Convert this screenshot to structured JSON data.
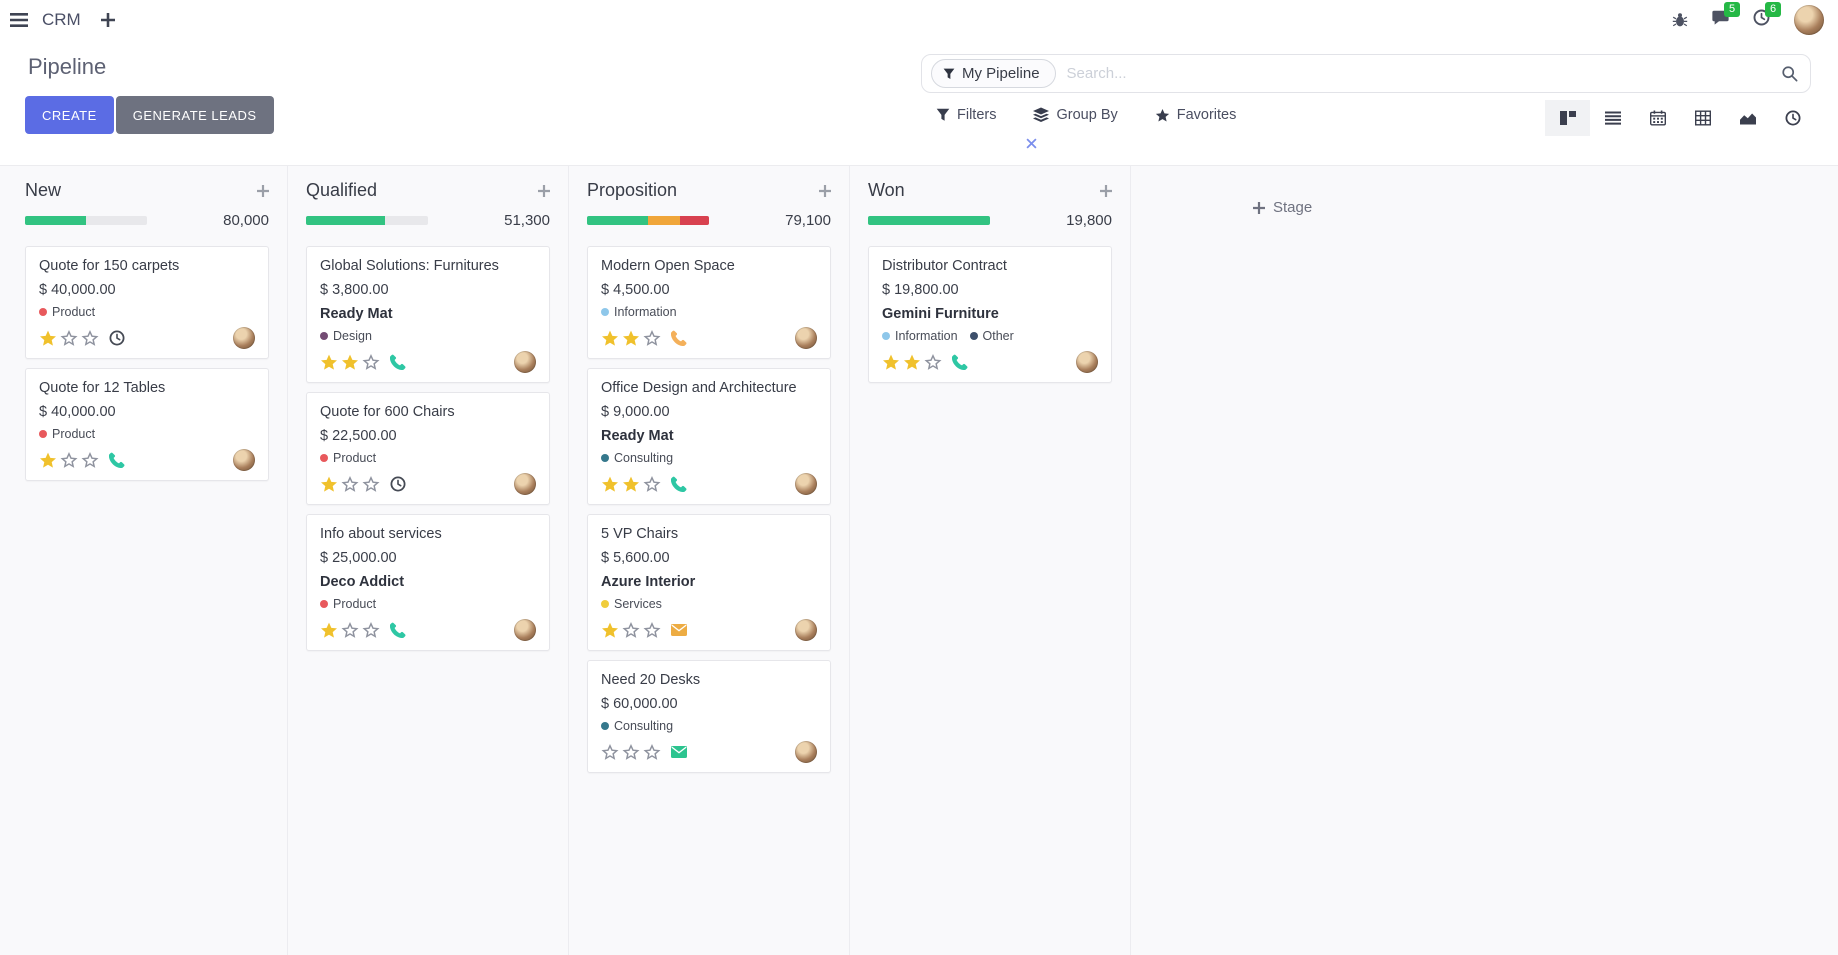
{
  "navbar": {
    "app": "CRM",
    "message_count": "5",
    "activity_count": "6"
  },
  "panel": {
    "title": "Pipeline",
    "create": "CREATE",
    "generate": "GENERATE LEADS",
    "facet": "My Pipeline",
    "search_placeholder": "Search...",
    "filters": "Filters",
    "group_by": "Group By",
    "favorites": "Favorites",
    "stage_add": "Stage"
  },
  "colors": {
    "accent": "#5b6ce4",
    "button_secondary": "#6e7280",
    "badge_green": "#25b845",
    "progress_track": "#e8e8eb",
    "star_filled": "#f0c12c",
    "star_empty": "#8f939f"
  },
  "board": {
    "columns": [
      {
        "name": "New",
        "total": "80,000",
        "bar": [
          {
            "color": "#32c381",
            "pct": 50
          }
        ],
        "cards": [
          {
            "title": "Quote for 150 carpets",
            "amount": "$ 40,000.00",
            "partner": "",
            "tags": [
              {
                "label": "Product",
                "color": "#e8595c"
              }
            ],
            "stars": 1,
            "activity": {
              "type": "clock",
              "color": "#454a54"
            }
          },
          {
            "title": "Quote for 12 Tables",
            "amount": "$ 40,000.00",
            "partner": "",
            "tags": [
              {
                "label": "Product",
                "color": "#e8595c"
              }
            ],
            "stars": 1,
            "activity": {
              "type": "phone",
              "color": "#2ec7a4"
            }
          }
        ]
      },
      {
        "name": "Qualified",
        "total": "51,300",
        "bar": [
          {
            "color": "#32c381",
            "pct": 65
          }
        ],
        "cards": [
          {
            "title": "Global Solutions: Furnitures",
            "amount": "$ 3,800.00",
            "partner": "Ready Mat",
            "tags": [
              {
                "label": "Design",
                "color": "#744c74"
              }
            ],
            "stars": 2,
            "activity": {
              "type": "phone",
              "color": "#2ec7a4"
            }
          },
          {
            "title": "Quote for 600 Chairs",
            "amount": "$ 22,500.00",
            "partner": "",
            "tags": [
              {
                "label": "Product",
                "color": "#e8595c"
              }
            ],
            "stars": 1,
            "activity": {
              "type": "clock",
              "color": "#454a54"
            }
          },
          {
            "title": "Info about services",
            "amount": "$ 25,000.00",
            "partner": "Deco Addict",
            "tags": [
              {
                "label": "Product",
                "color": "#e8595c"
              }
            ],
            "stars": 1,
            "activity": {
              "type": "phone",
              "color": "#2ec7a4"
            }
          }
        ]
      },
      {
        "name": "Proposition",
        "total": "79,100",
        "bar": [
          {
            "color": "#32c381",
            "pct": 50
          },
          {
            "color": "#f0a63a",
            "pct": 26
          },
          {
            "color": "#d8414f",
            "pct": 24
          }
        ],
        "cards": [
          {
            "title": "Modern Open Space",
            "amount": "$ 4,500.00",
            "partner": "",
            "tags": [
              {
                "label": "Information",
                "color": "#8ec7ea"
              }
            ],
            "stars": 2,
            "activity": {
              "type": "phone",
              "color": "#f4b05a"
            }
          },
          {
            "title": "Office Design and Architecture",
            "amount": "$ 9,000.00",
            "partner": "Ready Mat",
            "tags": [
              {
                "label": "Consulting",
                "color": "#35788c"
              }
            ],
            "stars": 2,
            "activity": {
              "type": "phone",
              "color": "#2ec7a4"
            }
          },
          {
            "title": "5 VP Chairs",
            "amount": "$ 5,600.00",
            "partner": "Azure Interior",
            "tags": [
              {
                "label": "Services",
                "color": "#f0cd3c"
              }
            ],
            "stars": 1,
            "activity": {
              "type": "mail",
              "color": "#edac43"
            }
          },
          {
            "title": "Need 20 Desks",
            "amount": "$ 60,000.00",
            "partner": "",
            "tags": [
              {
                "label": "Consulting",
                "color": "#35788c"
              }
            ],
            "stars": 0,
            "activity": {
              "type": "mail",
              "color": "#2cc48f"
            }
          }
        ]
      },
      {
        "name": "Won",
        "total": "19,800",
        "bar": [
          {
            "color": "#32c381",
            "pct": 100
          }
        ],
        "cards": [
          {
            "title": "Distributor Contract",
            "amount": "$ 19,800.00",
            "partner": "Gemini Furniture",
            "tags": [
              {
                "label": "Information",
                "color": "#8ec7ea"
              },
              {
                "label": "Other",
                "color": "#3d4f6b"
              }
            ],
            "stars": 2,
            "activity": {
              "type": "phone",
              "color": "#2ec7a4"
            }
          }
        ]
      }
    ]
  }
}
